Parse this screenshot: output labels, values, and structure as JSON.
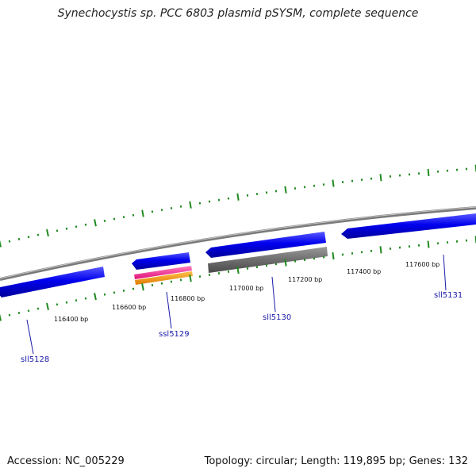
{
  "title": "Synechocystis sp. PCC 6803 plasmid pSYSM, complete sequence",
  "footer": {
    "accession_label": "Accession:",
    "accession_value": "NC_005229",
    "topology_label": "Topology:",
    "topology_value": "circular",
    "length_label": "Length:",
    "length_value": "119,895 bp",
    "genes_label": "Genes:",
    "genes_value": "132"
  },
  "ticks": [
    {
      "label": "116400 bp"
    },
    {
      "label": "116600 bp"
    },
    {
      "label": "116800 bp"
    },
    {
      "label": "117000 bp"
    },
    {
      "label": "117200 bp"
    },
    {
      "label": "117400 bp"
    },
    {
      "label": "117600 bp"
    }
  ],
  "genes": [
    {
      "name": "sll5128",
      "color": "#0000ee"
    },
    {
      "name": "ssl5129",
      "color": "#0000ee"
    },
    {
      "name": "sll5130",
      "color": "#0000ee"
    },
    {
      "name": "sll5131",
      "color": "#0000ee"
    }
  ],
  "colors": {
    "backbone": "#8c8c8c",
    "gene": "#0000ee",
    "tick": "#1f8a1f",
    "feature_pink": "#ff1493",
    "feature_orange": "#ff9900",
    "feature_gray": "#6e6e6e"
  }
}
